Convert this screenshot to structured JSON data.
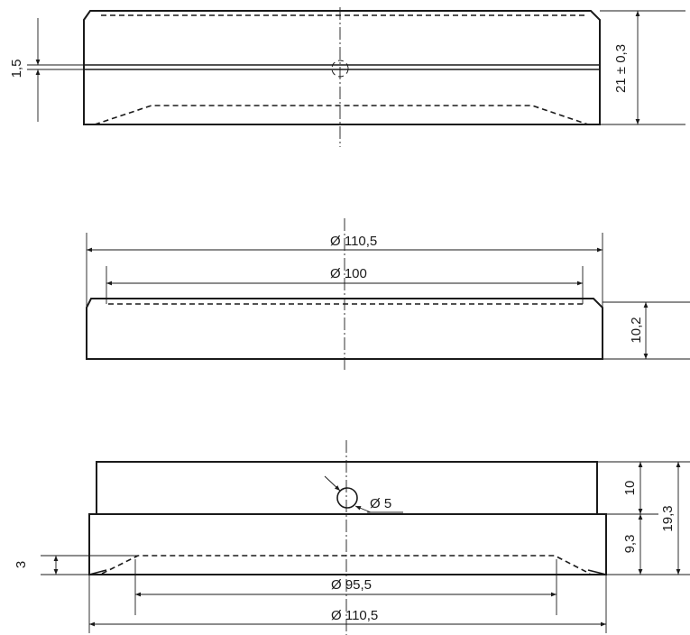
{
  "dimensions": {
    "view1_groove_height": "1,5",
    "view1_total_height": "21 ± 0,3",
    "view2_outer_diameter": "Ø 110,5",
    "view2_inner_diameter": "Ø 100",
    "view2_height": "10,2",
    "view3_hole_diameter": "Ø 5",
    "view3_upper_height": "10",
    "view3_lower_height": "9,3",
    "view3_total_height": "19,3",
    "view3_recess_depth": "3",
    "view3_recess_diameter": "Ø 95,5",
    "view3_outer_diameter": "Ø 110,5"
  }
}
